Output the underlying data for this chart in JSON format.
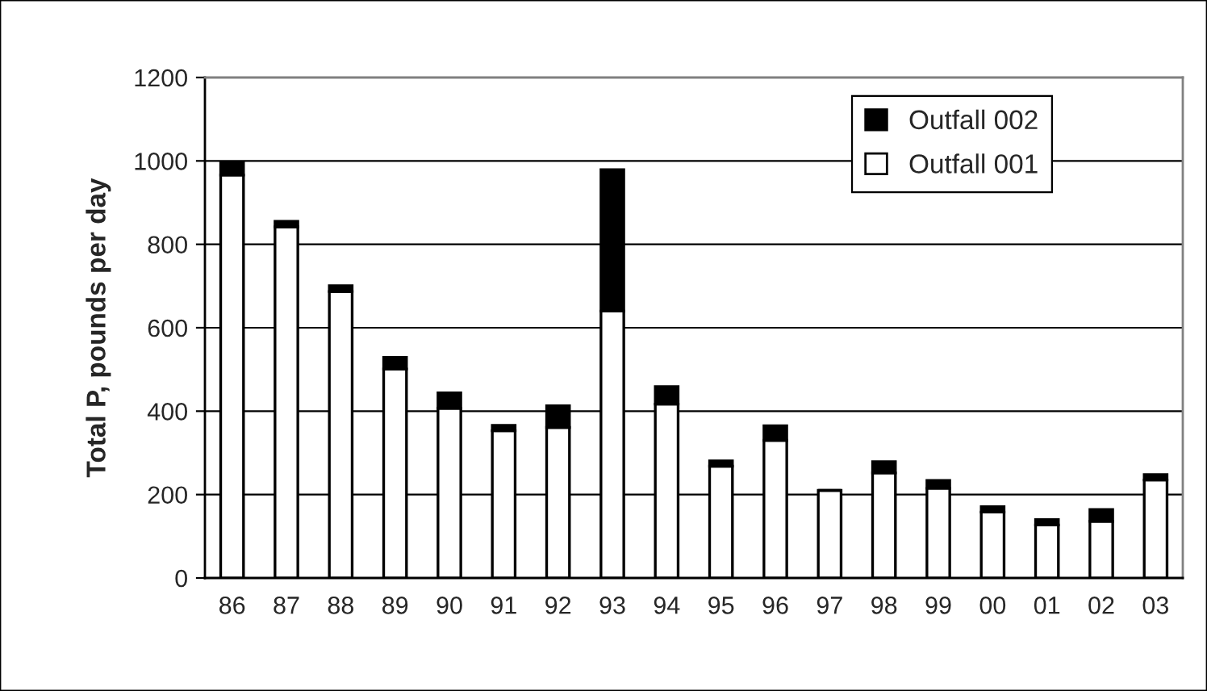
{
  "chart_data": {
    "type": "bar",
    "ylabel": "Total P, pounds per day",
    "stacked": true,
    "categories": [
      "86",
      "87",
      "88",
      "89",
      "90",
      "91",
      "92",
      "93",
      "94",
      "95",
      "96",
      "97",
      "98",
      "99",
      "00",
      "01",
      "02",
      "03"
    ],
    "series": [
      {
        "name": "Outfall 001",
        "color": "#ffffff",
        "values": [
          966,
          842,
          687,
          501,
          407,
          353,
          361,
          640,
          417,
          268,
          330,
          210,
          252,
          215,
          158,
          127,
          136,
          235
        ]
      },
      {
        "name": "Outfall 002",
        "color": "#000000",
        "values": [
          31,
          13,
          14,
          28,
          37,
          13,
          52,
          339,
          42,
          13,
          35,
          0,
          27,
          19,
          13,
          13,
          28,
          13
        ]
      }
    ],
    "ylim": [
      0,
      1200
    ],
    "yticks": [
      0,
      200,
      400,
      600,
      800,
      1000,
      1200
    ],
    "grid": "y",
    "legend": "top right"
  }
}
